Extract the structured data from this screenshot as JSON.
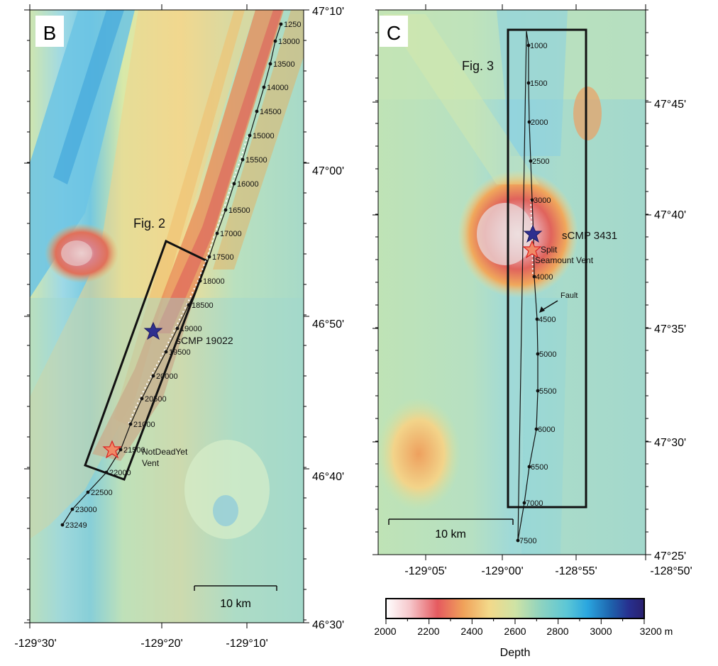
{
  "panel_b": {
    "label": "B",
    "lat_ticks": [
      "47°10'",
      "47°00'",
      "46°50'",
      "46°40'",
      "46°30'"
    ],
    "lon_ticks": [
      "-129°30'",
      "-129°20'",
      "-129°10'"
    ],
    "box_label": "Fig. 2",
    "cmp_labels": [
      "1250",
      "13000",
      "13500",
      "14000",
      "14500",
      "15000",
      "15500",
      "16000",
      "16500",
      "17000",
      "17500",
      "18000",
      "18500",
      "19000",
      "19500",
      "20000",
      "20500",
      "21000",
      "21500",
      "22000",
      "22500",
      "23000",
      "23249"
    ],
    "blue_star_label": "sCMP 19022",
    "red_star_label_1": "NotDeadYet",
    "red_star_label_2": "Vent",
    "scale_label": "10 km"
  },
  "panel_c": {
    "label": "C",
    "lat_ticks": [
      "47°45'",
      "47°40'",
      "47°35'",
      "47°30'",
      "47°25'"
    ],
    "lon_ticks": [
      "-129°05'",
      "-129°00'",
      "-128°55'",
      "-128°50'"
    ],
    "box_label": "Fig. 3",
    "cmp_labels": [
      "1000",
      "1500",
      "2000",
      "2500",
      "3000",
      "3500",
      "4000",
      "4500",
      "5000",
      "5500",
      "6000",
      "6500",
      "7000",
      "7500"
    ],
    "blue_star_label": "sCMP 3431",
    "red_star_label_1": "Split",
    "red_star_label_2": "Seamount Vent",
    "fault_label": "Fault",
    "scale_label": "10 km"
  },
  "colorbar": {
    "ticks": [
      "2000",
      "2200",
      "2400",
      "2600",
      "2800",
      "3000",
      "3200 m"
    ],
    "label": "Depth",
    "colors": [
      "#ffffff",
      "#f6c9cd",
      "#e55a5f",
      "#f0a25a",
      "#f3d98a",
      "#cfe3a5",
      "#8ed3c0",
      "#5cc7d6",
      "#2aa6df",
      "#1e63ad",
      "#27308f",
      "#2a206e"
    ]
  }
}
